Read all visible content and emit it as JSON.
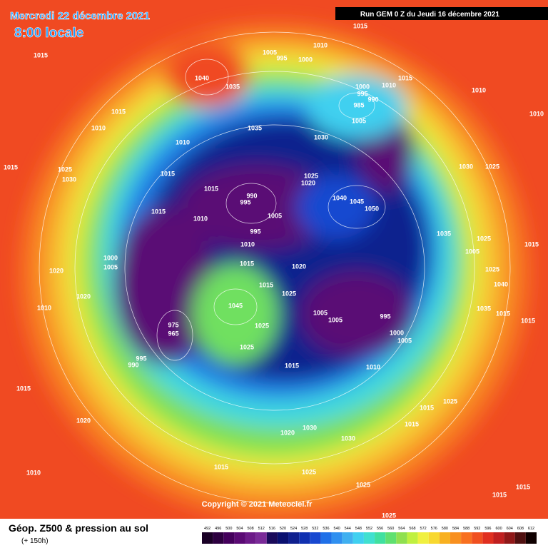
{
  "header": {
    "date": "Mercredi 22 décembre 2021",
    "time": "8:00 locale",
    "run": "Run GEM 0 Z du Jeudi 16 décembre 2021"
  },
  "footer": {
    "title": "Géop. Z500 & pression au sol",
    "subtitle": "(+ 150h)",
    "copyright": "Copyright © 2021 Meteociel.fr"
  },
  "legend": {
    "values": [
      492,
      496,
      500,
      504,
      508,
      512,
      516,
      520,
      524,
      528,
      532,
      536,
      540,
      544,
      548,
      552,
      556,
      560,
      564,
      568,
      572,
      576,
      580,
      584,
      588,
      592,
      596,
      600,
      604,
      608,
      612
    ],
    "colors": [
      "#1a0026",
      "#2d0040",
      "#44005c",
      "#5a0a74",
      "#6c1a88",
      "#7a2a98",
      "#1a0a5a",
      "#0a1070",
      "#10208e",
      "#1030b0",
      "#1848d0",
      "#2070e8",
      "#3090f0",
      "#40b0f0",
      "#40d0f0",
      "#40e0d0",
      "#40e0a0",
      "#60e070",
      "#90e050",
      "#c0f040",
      "#f0f040",
      "#f8d830",
      "#f8b020",
      "#f89020",
      "#f87020",
      "#f05020",
      "#e03020",
      "#c02020",
      "#901818",
      "#501010",
      "#100000"
    ]
  },
  "map": {
    "pressure_labels": [
      "1015",
      "1010",
      "1005",
      "995",
      "1000",
      "1015",
      "1040",
      "1035",
      "1015",
      "1010",
      "1000",
      "995",
      "990",
      "985",
      "1010",
      "1010",
      "1015",
      "1010",
      "1005",
      "1035",
      "1030",
      "1010",
      "1025",
      "1015",
      "1030",
      "1025",
      "1030",
      "1025",
      "1020",
      "1015",
      "1015",
      "990",
      "995",
      "1040",
      "1045",
      "1050",
      "1015",
      "1010",
      "1005",
      "995",
      "1035",
      "1025",
      "1015",
      "1005",
      "1010",
      "1000",
      "1005",
      "1015",
      "1020",
      "1025",
      "1040",
      "1020",
      "1015",
      "1025",
      "1020",
      "1010",
      "1045",
      "1025",
      "1005",
      "1005",
      "995",
      "1000",
      "1005",
      "1035",
      "1015",
      "1015",
      "975",
      "965",
      "1025",
      "995",
      "990",
      "1015",
      "1010",
      "1015",
      "1020",
      "1015",
      "1025",
      "1030",
      "1020",
      "1030",
      "1015",
      "1015",
      "1025",
      "1010",
      "1025",
      "1015",
      "1025",
      "1015"
    ]
  }
}
